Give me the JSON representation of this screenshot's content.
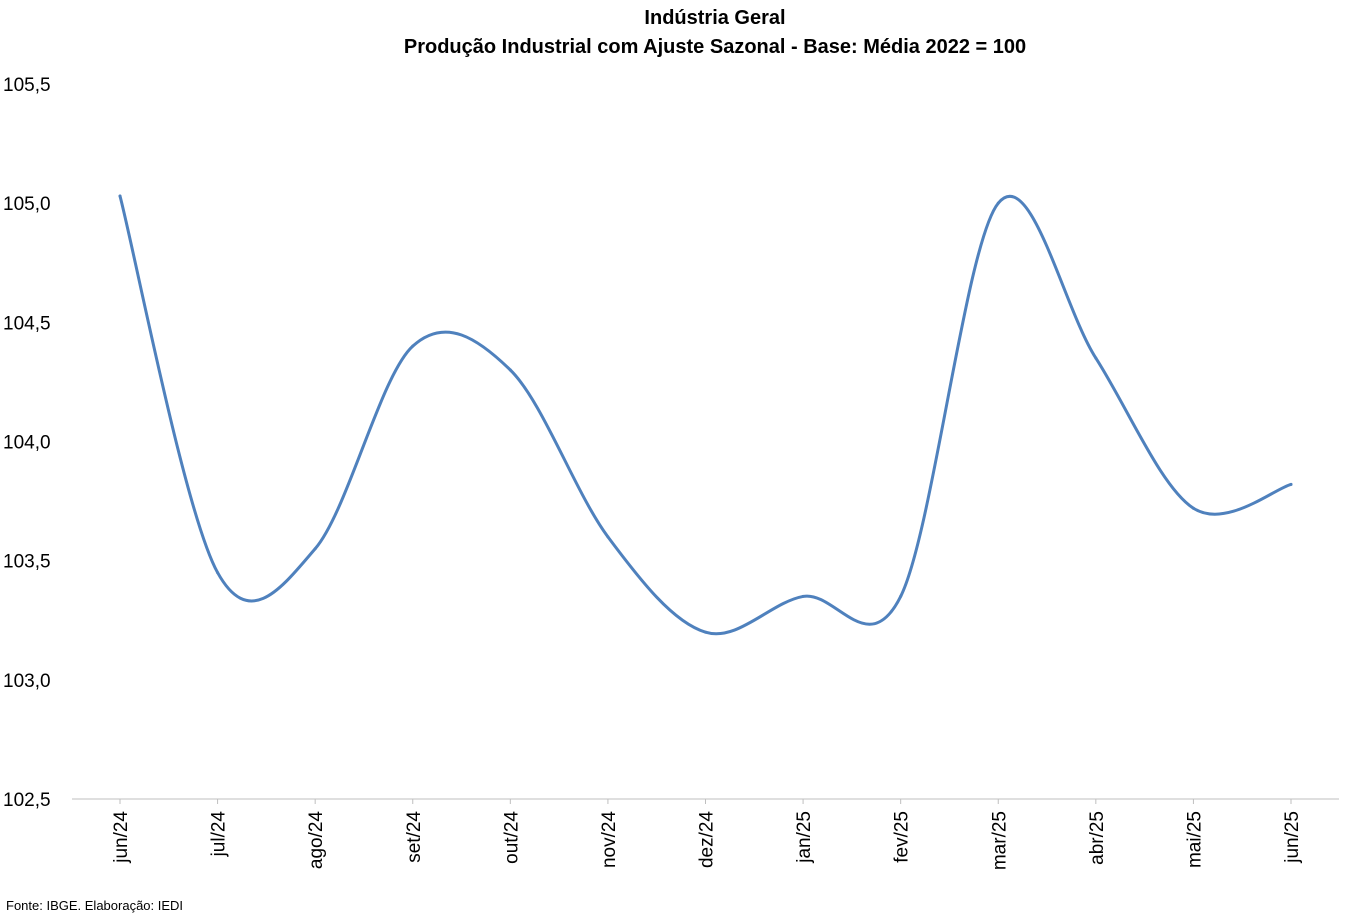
{
  "chart_data": {
    "type": "line",
    "title": "Indústria Geral",
    "subtitle": "Produção Industrial com Ajuste Sazonal - Base: Média 2022 = 100",
    "categories": [
      "jun/24",
      "jul/24",
      "ago/24",
      "set/24",
      "out/24",
      "nov/24",
      "dez/24",
      "jan/25",
      "fev/25",
      "mar/25",
      "abr/25",
      "mai/25",
      "jun/25"
    ],
    "series": [
      {
        "values": [
          105.03,
          103.45,
          103.55,
          104.4,
          104.3,
          103.6,
          103.2,
          103.35,
          103.35,
          105.0,
          104.35,
          103.72,
          103.82
        ],
        "color": "#4f81bd"
      }
    ],
    "ylim": [
      102.5,
      105.5
    ],
    "yticks": [
      102.5,
      103.0,
      103.5,
      104.0,
      104.5,
      105.0,
      105.5
    ],
    "ytick_labels": [
      "102,5",
      "103,0",
      "103,5",
      "104,0",
      "104,5",
      "105,0",
      "105,5"
    ],
    "grid": false,
    "legend": "none",
    "source": "Fonte: IBGE. Elaboração: IEDI"
  }
}
